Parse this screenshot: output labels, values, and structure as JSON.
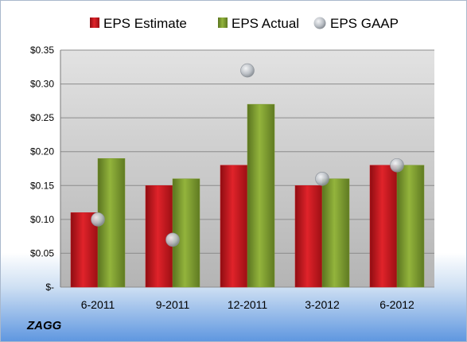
{
  "company": "ZAGG",
  "colors": {
    "estimate": "#c8151b",
    "actual": "#7c9a2e",
    "gaap": "#b9bec4"
  },
  "chart_data": {
    "type": "bar",
    "categories": [
      "6-2011",
      "9-2011",
      "12-2011",
      "3-2012",
      "6-2012"
    ],
    "series": [
      {
        "name": "EPS Estimate",
        "kind": "bar",
        "values": [
          0.11,
          0.15,
          0.18,
          0.15,
          0.18
        ]
      },
      {
        "name": "EPS Actual",
        "kind": "bar",
        "values": [
          0.19,
          0.16,
          0.27,
          0.16,
          0.18
        ]
      },
      {
        "name": "EPS GAAP",
        "kind": "marker",
        "values": [
          0.1,
          0.07,
          0.32,
          0.16,
          0.18
        ]
      }
    ],
    "yticks": [
      {
        "value": 0,
        "label": "$-"
      },
      {
        "value": 0.05,
        "label": "$0.05"
      },
      {
        "value": 0.1,
        "label": "$0.10"
      },
      {
        "value": 0.15,
        "label": "$0.15"
      },
      {
        "value": 0.2,
        "label": "$0.20"
      },
      {
        "value": 0.25,
        "label": "$0.25"
      },
      {
        "value": 0.3,
        "label": "$0.30"
      },
      {
        "value": 0.35,
        "label": "$0.35"
      }
    ],
    "ylim": [
      0,
      0.35
    ],
    "grid": true,
    "legend_position": "top"
  }
}
